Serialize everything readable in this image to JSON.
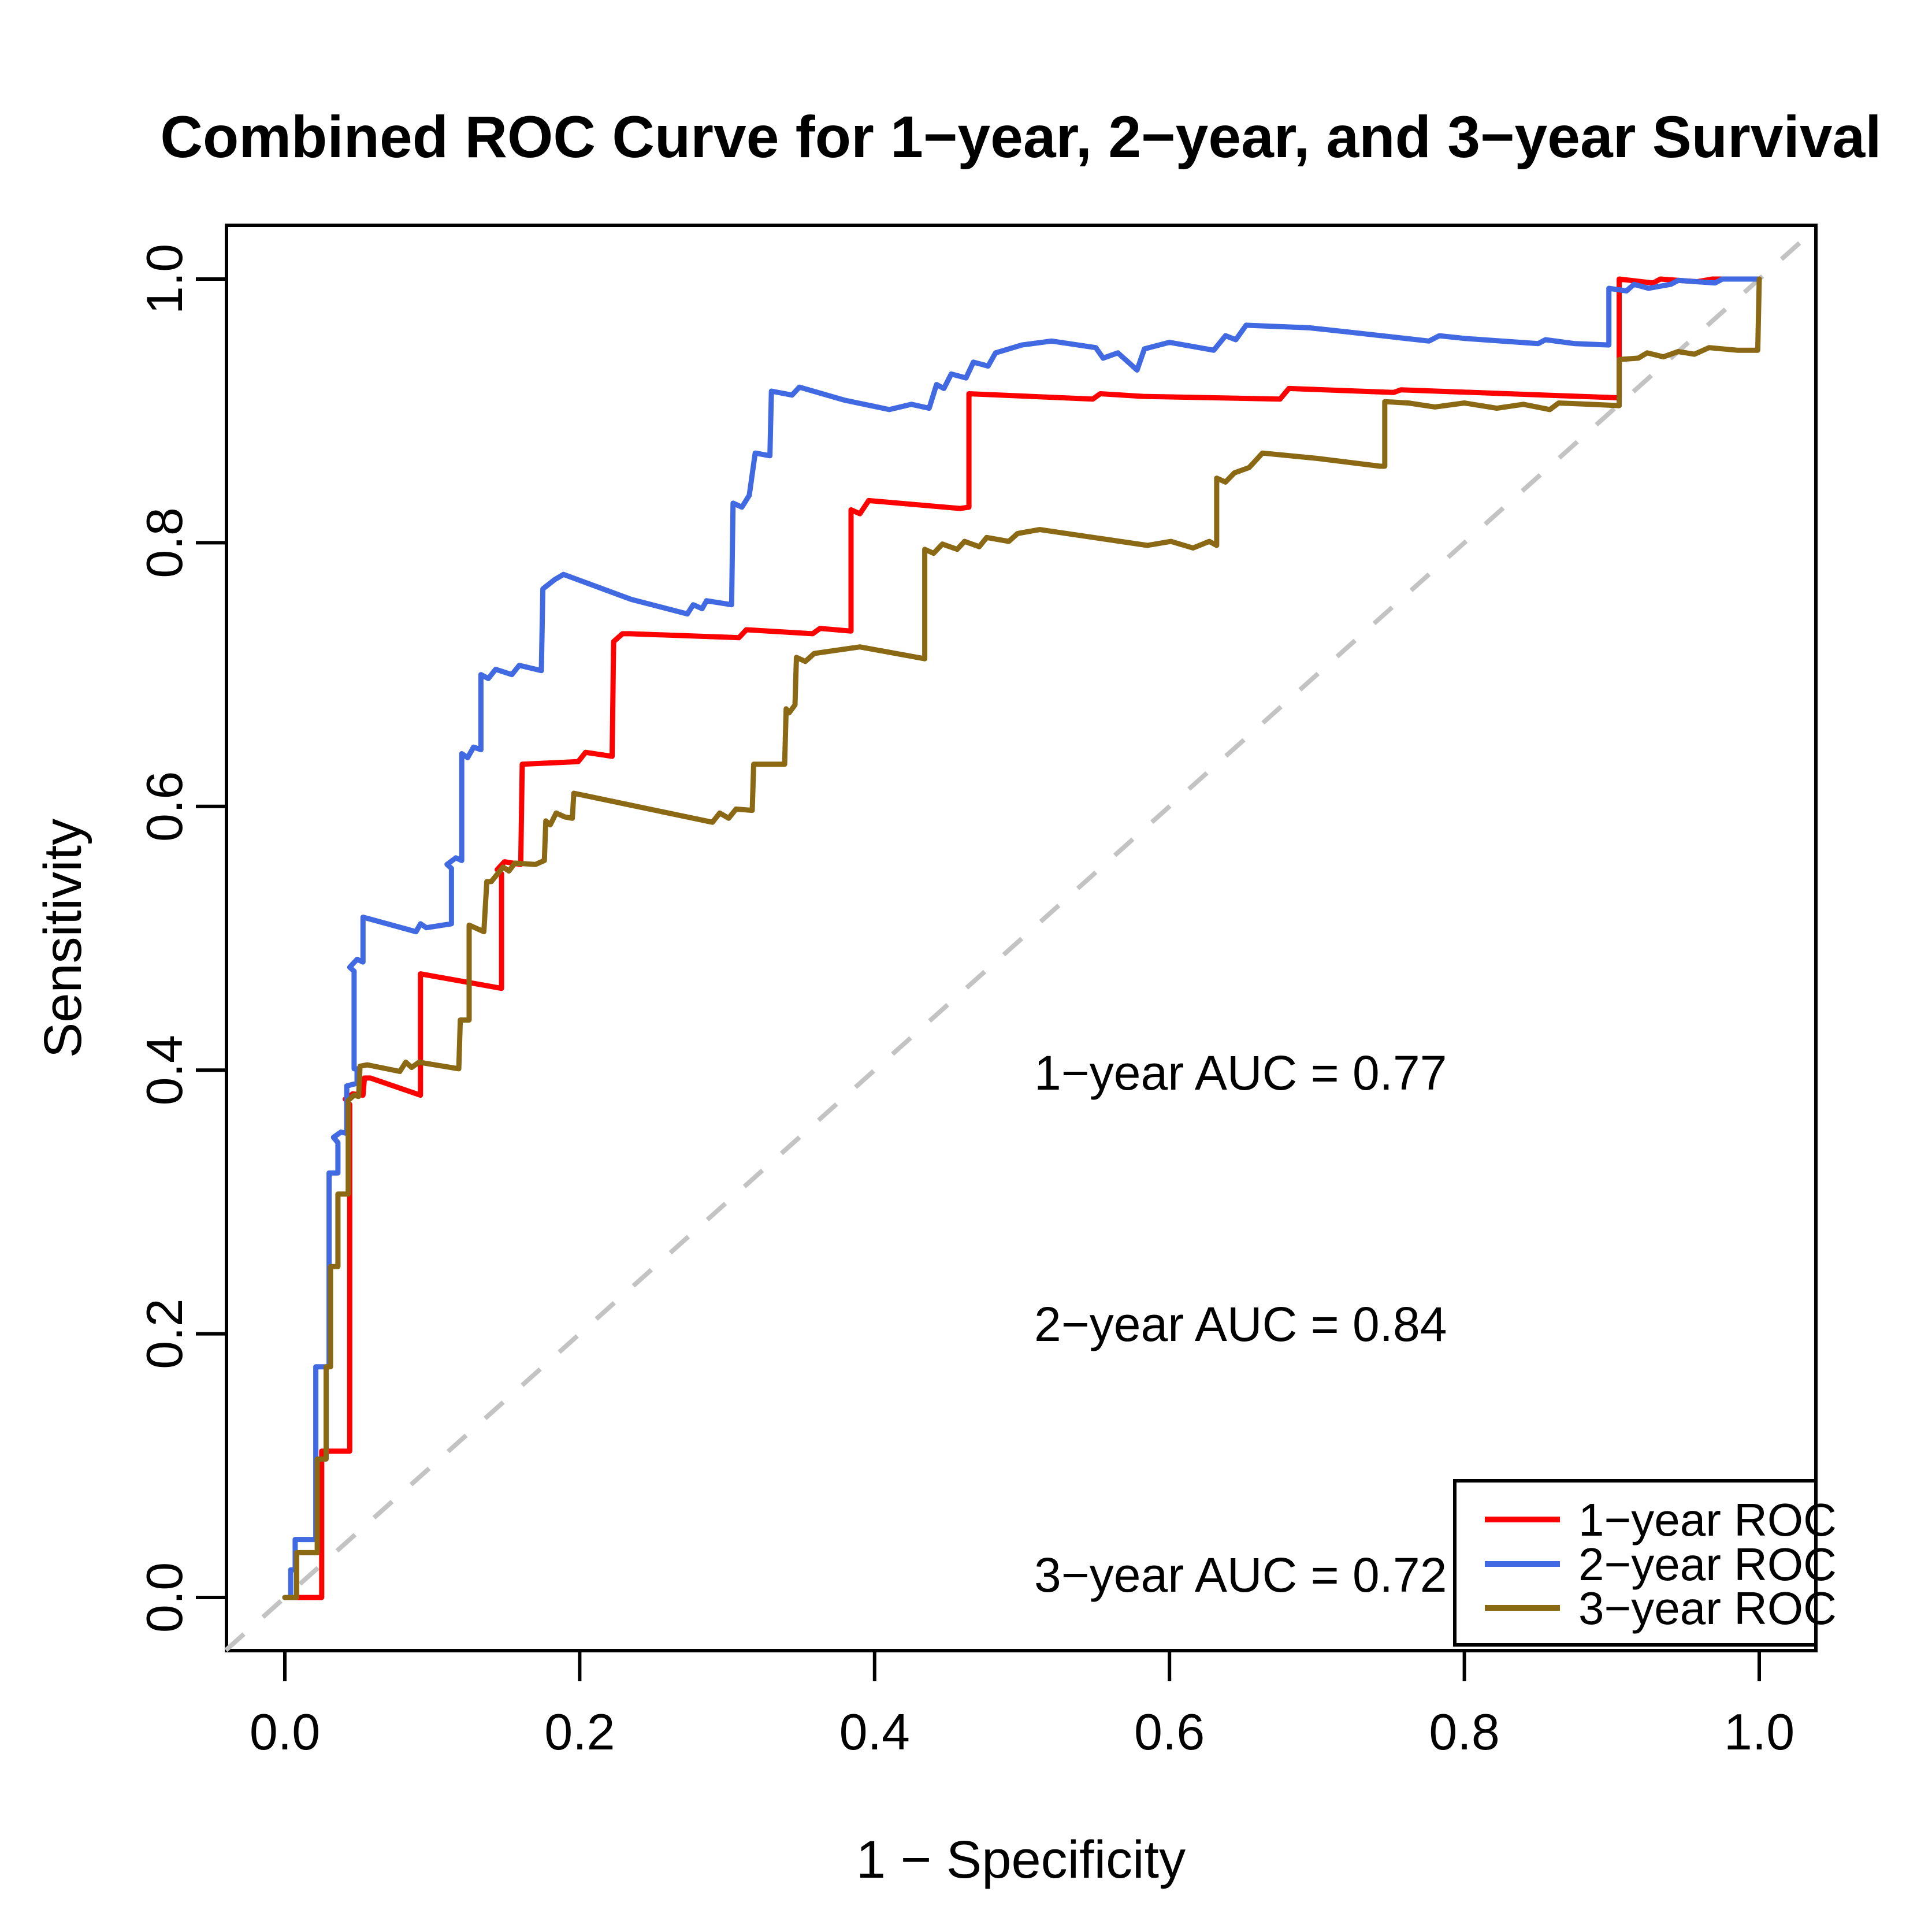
{
  "title": "Combined ROC Curve for 1−year, 2−year, and 3−year Survival",
  "axes": {
    "x_label": "1 − Specificity",
    "y_label": "Sensitivity",
    "x_tick_labels": [
      "0.0",
      "0.2",
      "0.4",
      "0.6",
      "0.8",
      "1.0"
    ],
    "y_tick_labels": [
      "0.0",
      "0.2",
      "0.4",
      "0.6",
      "0.8",
      "1.0"
    ]
  },
  "annotations": [
    {
      "text": "1−year AUC = 0.77",
      "color": "#FF0000"
    },
    {
      "text": "2−year AUC = 0.84",
      "color": "#4169E1"
    },
    {
      "text": "3−year AUC = 0.72",
      "color": "#8B6914"
    }
  ],
  "legend": {
    "items": [
      {
        "label": "1−year ROC",
        "color": "#FF0000"
      },
      {
        "label": "2−year ROC",
        "color": "#4169E1"
      },
      {
        "label": "3−year ROC",
        "color": "#8B6914"
      }
    ]
  },
  "chart_data": {
    "type": "line",
    "subtype": "roc-step-curves",
    "title": "Combined ROC Curve for 1−year, 2−year, and 3−year Survival",
    "xlabel": "1 − Specificity",
    "ylabel": "Sensitivity",
    "xlim": [
      0,
      1
    ],
    "ylim": [
      0,
      1
    ],
    "axis_expansion": 0.04,
    "grid": false,
    "legend_position": "bottom-right",
    "x_ticks": [
      0,
      0.2,
      0.4,
      0.6,
      0.8,
      1.0
    ],
    "y_ticks": [
      0,
      0.2,
      0.4,
      0.6,
      0.8,
      1.0
    ],
    "diagonal": {
      "from": [
        -0.04,
        -0.04
      ],
      "to": [
        1.04,
        1.04
      ],
      "color": "#C3C3C3",
      "dashed": true
    },
    "series": [
      {
        "name": "1−year ROC",
        "auc": 0.77,
        "color": "#FF0000",
        "points": [
          [
            0,
            0
          ],
          [
            0.025,
            0
          ],
          [
            0.025,
            0.111
          ],
          [
            0.044,
            0.111
          ],
          [
            0.044,
            0.374
          ],
          [
            0.041,
            0.378
          ],
          [
            0.046,
            0.382
          ],
          [
            0.053,
            0.381
          ],
          [
            0.054,
            0.394
          ],
          [
            0.058,
            0.394
          ],
          [
            0.092,
            0.381
          ],
          [
            0.092,
            0.473
          ],
          [
            0.147,
            0.462
          ],
          [
            0.147,
            0.549
          ],
          [
            0.144,
            0.552
          ],
          [
            0.149,
            0.558
          ],
          [
            0.16,
            0.556
          ],
          [
            0.161,
            0.632
          ],
          [
            0.199,
            0.634
          ],
          [
            0.204,
            0.641
          ],
          [
            0.222,
            0.638
          ],
          [
            0.223,
            0.725
          ],
          [
            0.229,
            0.731
          ],
          [
            0.234,
            0.731
          ],
          [
            0.308,
            0.728
          ],
          [
            0.313,
            0.734
          ],
          [
            0.358,
            0.731
          ],
          [
            0.363,
            0.735
          ],
          [
            0.384,
            0.733
          ],
          [
            0.384,
            0.825
          ],
          [
            0.39,
            0.822
          ],
          [
            0.396,
            0.832
          ],
          [
            0.458,
            0.826
          ],
          [
            0.464,
            0.827
          ],
          [
            0.464,
            0.913
          ],
          [
            0.548,
            0.909
          ],
          [
            0.553,
            0.913
          ],
          [
            0.582,
            0.911
          ],
          [
            0.675,
            0.909
          ],
          [
            0.681,
            0.917
          ],
          [
            0.752,
            0.914
          ],
          [
            0.757,
            0.916
          ],
          [
            0.903,
            0.91
          ],
          [
            0.905,
            0.91
          ],
          [
            0.905,
            1.0
          ],
          [
            0.928,
            0.997
          ],
          [
            0.933,
            1.0
          ],
          [
            0.958,
            0.998
          ],
          [
            0.968,
            1.0
          ],
          [
            1,
            1
          ]
        ]
      },
      {
        "name": "2−year ROC",
        "auc": 0.84,
        "color": "#4169E1",
        "points": [
          [
            0,
            0
          ],
          [
            0.004,
            0
          ],
          [
            0.004,
            0.021
          ],
          [
            0.007,
            0.021
          ],
          [
            0.007,
            0.044
          ],
          [
            0.021,
            0.044
          ],
          [
            0.021,
            0.175
          ],
          [
            0.03,
            0.175
          ],
          [
            0.03,
            0.322
          ],
          [
            0.036,
            0.322
          ],
          [
            0.036,
            0.345
          ],
          [
            0.033,
            0.349
          ],
          [
            0.038,
            0.353
          ],
          [
            0.042,
            0.352
          ],
          [
            0.042,
            0.388
          ],
          [
            0.049,
            0.39
          ],
          [
            0.049,
            0.401
          ],
          [
            0.047,
            0.401
          ],
          [
            0.047,
            0.475
          ],
          [
            0.044,
            0.478
          ],
          [
            0.049,
            0.484
          ],
          [
            0.053,
            0.482
          ],
          [
            0.053,
            0.516
          ],
          [
            0.089,
            0.505
          ],
          [
            0.092,
            0.511
          ],
          [
            0.096,
            0.508
          ],
          [
            0.113,
            0.511
          ],
          [
            0.113,
            0.553
          ],
          [
            0.11,
            0.556
          ],
          [
            0.116,
            0.561
          ],
          [
            0.12,
            0.559
          ],
          [
            0.12,
            0.64
          ],
          [
            0.124,
            0.637
          ],
          [
            0.128,
            0.645
          ],
          [
            0.133,
            0.643
          ],
          [
            0.133,
            0.7
          ],
          [
            0.138,
            0.697
          ],
          [
            0.143,
            0.704
          ],
          [
            0.154,
            0.7
          ],
          [
            0.159,
            0.707
          ],
          [
            0.174,
            0.703
          ],
          [
            0.175,
            0.765
          ],
          [
            0.183,
            0.772
          ],
          [
            0.189,
            0.776
          ],
          [
            0.235,
            0.757
          ],
          [
            0.273,
            0.746
          ],
          [
            0.277,
            0.753
          ],
          [
            0.283,
            0.75
          ],
          [
            0.286,
            0.756
          ],
          [
            0.303,
            0.753
          ],
          [
            0.304,
            0.83
          ],
          [
            0.31,
            0.827
          ],
          [
            0.315,
            0.836
          ],
          [
            0.319,
            0.868
          ],
          [
            0.329,
            0.866
          ],
          [
            0.33,
            0.915
          ],
          [
            0.344,
            0.912
          ],
          [
            0.349,
            0.918
          ],
          [
            0.38,
            0.908
          ],
          [
            0.41,
            0.901
          ],
          [
            0.425,
            0.905
          ],
          [
            0.437,
            0.902
          ],
          [
            0.442,
            0.92
          ],
          [
            0.447,
            0.917
          ],
          [
            0.452,
            0.928
          ],
          [
            0.462,
            0.925
          ],
          [
            0.467,
            0.937
          ],
          [
            0.477,
            0.934
          ],
          [
            0.482,
            0.944
          ],
          [
            0.5,
            0.95
          ],
          [
            0.52,
            0.953
          ],
          [
            0.55,
            0.948
          ],
          [
            0.555,
            0.94
          ],
          [
            0.565,
            0.944
          ],
          [
            0.578,
            0.931
          ],
          [
            0.583,
            0.947
          ],
          [
            0.6,
            0.952
          ],
          [
            0.63,
            0.946
          ],
          [
            0.638,
            0.957
          ],
          [
            0.645,
            0.954
          ],
          [
            0.652,
            0.965
          ],
          [
            0.695,
            0.963
          ],
          [
            0.72,
            0.96
          ],
          [
            0.776,
            0.953
          ],
          [
            0.783,
            0.957
          ],
          [
            0.8,
            0.955
          ],
          [
            0.85,
            0.951
          ],
          [
            0.855,
            0.954
          ],
          [
            0.875,
            0.951
          ],
          [
            0.898,
            0.95
          ],
          [
            0.898,
            0.993
          ],
          [
            0.91,
            0.991
          ],
          [
            0.915,
            0.996
          ],
          [
            0.925,
            0.993
          ],
          [
            0.94,
            0.996
          ],
          [
            0.945,
            0.999
          ],
          [
            0.97,
            0.997
          ],
          [
            0.975,
            1.0
          ],
          [
            1,
            1
          ]
        ]
      },
      {
        "name": "3−year ROC",
        "auc": 0.72,
        "color": "#8B6914",
        "points": [
          [
            0,
            0
          ],
          [
            0.008,
            0
          ],
          [
            0.008,
            0.034
          ],
          [
            0.022,
            0.034
          ],
          [
            0.022,
            0.105
          ],
          [
            0.028,
            0.105
          ],
          [
            0.028,
            0.175
          ],
          [
            0.031,
            0.175
          ],
          [
            0.031,
            0.251
          ],
          [
            0.036,
            0.251
          ],
          [
            0.036,
            0.306
          ],
          [
            0.043,
            0.306
          ],
          [
            0.043,
            0.377
          ],
          [
            0.047,
            0.381
          ],
          [
            0.05,
            0.38
          ],
          [
            0.051,
            0.403
          ],
          [
            0.056,
            0.404
          ],
          [
            0.078,
            0.399
          ],
          [
            0.082,
            0.406
          ],
          [
            0.086,
            0.402
          ],
          [
            0.091,
            0.406
          ],
          [
            0.118,
            0.401
          ],
          [
            0.119,
            0.438
          ],
          [
            0.125,
            0.438
          ],
          [
            0.125,
            0.51
          ],
          [
            0.135,
            0.505
          ],
          [
            0.137,
            0.543
          ],
          [
            0.14,
            0.543
          ],
          [
            0.148,
            0.554
          ],
          [
            0.152,
            0.551
          ],
          [
            0.156,
            0.557
          ],
          [
            0.17,
            0.556
          ],
          [
            0.176,
            0.559
          ],
          [
            0.177,
            0.589
          ],
          [
            0.18,
            0.586
          ],
          [
            0.184,
            0.595
          ],
          [
            0.19,
            0.592
          ],
          [
            0.195,
            0.591
          ],
          [
            0.196,
            0.61
          ],
          [
            0.29,
            0.588
          ],
          [
            0.295,
            0.595
          ],
          [
            0.301,
            0.591
          ],
          [
            0.306,
            0.598
          ],
          [
            0.317,
            0.597
          ],
          [
            0.318,
            0.632
          ],
          [
            0.339,
            0.632
          ],
          [
            0.34,
            0.674
          ],
          [
            0.342,
            0.671
          ],
          [
            0.346,
            0.677
          ],
          [
            0.347,
            0.713
          ],
          [
            0.353,
            0.71
          ],
          [
            0.359,
            0.716
          ],
          [
            0.39,
            0.721
          ],
          [
            0.434,
            0.712
          ],
          [
            0.434,
            0.795
          ],
          [
            0.44,
            0.792
          ],
          [
            0.446,
            0.799
          ],
          [
            0.456,
            0.795
          ],
          [
            0.461,
            0.801
          ],
          [
            0.471,
            0.797
          ],
          [
            0.476,
            0.804
          ],
          [
            0.491,
            0.801
          ],
          [
            0.497,
            0.807
          ],
          [
            0.512,
            0.81
          ],
          [
            0.585,
            0.798
          ],
          [
            0.601,
            0.801
          ],
          [
            0.616,
            0.796
          ],
          [
            0.627,
            0.801
          ],
          [
            0.632,
            0.798
          ],
          [
            0.632,
            0.849
          ],
          [
            0.638,
            0.846
          ],
          [
            0.644,
            0.853
          ],
          [
            0.654,
            0.857
          ],
          [
            0.659,
            0.863
          ],
          [
            0.663,
            0.868
          ],
          [
            0.7,
            0.864
          ],
          [
            0.743,
            0.858
          ],
          [
            0.746,
            0.858
          ],
          [
            0.746,
            0.907
          ],
          [
            0.762,
            0.906
          ],
          [
            0.78,
            0.903
          ],
          [
            0.8,
            0.906
          ],
          [
            0.822,
            0.902
          ],
          [
            0.84,
            0.905
          ],
          [
            0.858,
            0.901
          ],
          [
            0.864,
            0.906
          ],
          [
            0.885,
            0.905
          ],
          [
            0.905,
            0.904
          ],
          [
            0.905,
            0.939
          ],
          [
            0.918,
            0.94
          ],
          [
            0.924,
            0.944
          ],
          [
            0.935,
            0.941
          ],
          [
            0.945,
            0.945
          ],
          [
            0.956,
            0.943
          ],
          [
            0.966,
            0.948
          ],
          [
            0.985,
            0.946
          ],
          [
            0.999,
            0.946
          ],
          [
            1,
            1
          ]
        ]
      }
    ]
  }
}
